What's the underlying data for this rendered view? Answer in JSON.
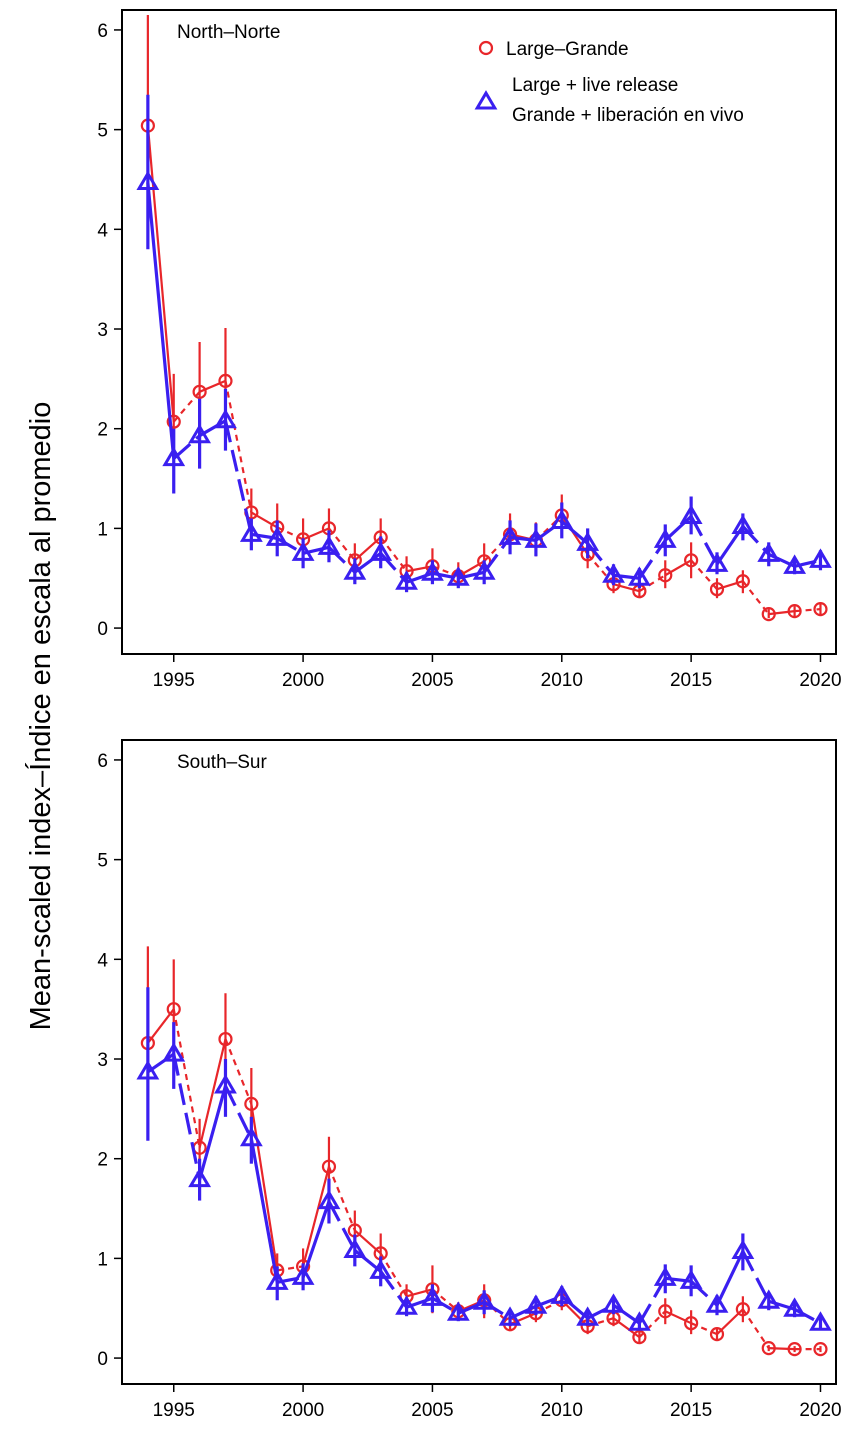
{
  "chart_data": {
    "type": "line",
    "ylabel": "Mean-scaled index–Índice en escala al promedio",
    "xticks": [
      1995,
      2000,
      2005,
      2010,
      2015,
      2020
    ],
    "yticks": [
      0,
      1,
      2,
      3,
      4,
      5,
      6
    ],
    "xlim": [
      1993.0,
      2020.6
    ],
    "ylim": [
      -0.26,
      6.2
    ],
    "legend_position": "top-right",
    "colors": {
      "large": "#e8262a",
      "live_release": "#3a1ff0"
    },
    "legend": [
      {
        "key": "large",
        "marker": "circle",
        "text": [
          "Large–Grande"
        ]
      },
      {
        "key": "live_release",
        "marker": "triangle",
        "text": [
          "Large + live release",
          "Grande + liberación en vivo"
        ]
      }
    ],
    "panels": [
      {
        "label": "North–Norte",
        "x": [
          1994,
          1995,
          1996,
          1997,
          1998,
          1999,
          2000,
          2001,
          2002,
          2003,
          2004,
          2005,
          2006,
          2007,
          2008,
          2009,
          2010,
          2011,
          2012,
          2013,
          2014,
          2015,
          2016,
          2017,
          2018,
          2019,
          2020
        ],
        "series": [
          {
            "key": "large",
            "name": "Large–Grande",
            "values": [
              5.04,
              2.07,
              2.37,
              2.48,
              1.16,
              1.01,
              0.89,
              1.0,
              0.68,
              0.91,
              0.57,
              0.62,
              0.52,
              0.67,
              0.94,
              0.88,
              1.13,
              0.74,
              0.44,
              0.37,
              0.53,
              0.68,
              0.39,
              0.47,
              0.14,
              0.17,
              0.19
            ],
            "lower": [
              4.2,
              1.65,
              1.95,
              2.0,
              0.95,
              0.8,
              0.72,
              0.8,
              0.52,
              0.72,
              0.45,
              0.45,
              0.42,
              0.5,
              0.75,
              0.72,
              0.93,
              0.6,
              0.35,
              0.3,
              0.4,
              0.5,
              0.3,
              0.35,
              0.1,
              0.12,
              0.14
            ],
            "upper": [
              6.15,
              2.55,
              2.87,
              3.01,
              1.4,
              1.25,
              1.1,
              1.2,
              0.85,
              1.1,
              0.72,
              0.8,
              0.66,
              0.85,
              1.15,
              1.06,
              1.34,
              0.9,
              0.55,
              0.46,
              0.68,
              0.86,
              0.5,
              0.58,
              0.19,
              0.22,
              0.25
            ]
          },
          {
            "key": "live_release",
            "name": "Large + live release Grande + liberación en vivo",
            "values": [
              4.47,
              1.7,
              1.93,
              2.08,
              0.94,
              0.9,
              0.75,
              0.81,
              0.56,
              0.75,
              0.46,
              0.55,
              0.5,
              0.56,
              0.91,
              0.88,
              1.07,
              0.85,
              0.53,
              0.5,
              0.88,
              1.12,
              0.64,
              1.02,
              0.74,
              0.62,
              0.68
            ],
            "lower": [
              3.8,
              1.35,
              1.6,
              1.78,
              0.78,
              0.72,
              0.6,
              0.66,
              0.44,
              0.6,
              0.36,
              0.44,
              0.4,
              0.44,
              0.74,
              0.72,
              0.9,
              0.7,
              0.43,
              0.4,
              0.72,
              0.94,
              0.54,
              0.88,
              0.62,
              0.54,
              0.58
            ],
            "upper": [
              5.35,
              2.0,
              2.3,
              2.4,
              1.1,
              1.08,
              0.9,
              0.98,
              0.7,
              0.92,
              0.56,
              0.68,
              0.6,
              0.68,
              1.08,
              1.05,
              1.26,
              1.0,
              0.64,
              0.6,
              1.04,
              1.32,
              0.76,
              1.15,
              0.86,
              0.7,
              0.78
            ]
          }
        ]
      },
      {
        "label": "South–Sur",
        "x": [
          1994,
          1995,
          1996,
          1997,
          1998,
          1999,
          2000,
          2001,
          2002,
          2003,
          2004,
          2005,
          2006,
          2007,
          2008,
          2009,
          2010,
          2011,
          2012,
          2013,
          2014,
          2015,
          2016,
          2017,
          2018,
          2019,
          2020
        ],
        "series": [
          {
            "key": "large",
            "name": "Large–Grande",
            "values": [
              3.16,
              3.5,
              2.11,
              3.2,
              2.55,
              0.88,
              0.92,
              1.92,
              1.28,
              1.05,
              0.62,
              0.69,
              0.47,
              0.58,
              0.34,
              0.45,
              0.58,
              0.32,
              0.4,
              0.21,
              0.47,
              0.35,
              0.24,
              0.49,
              0.1,
              0.09,
              0.09
            ],
            "lower": [
              2.35,
              2.95,
              1.8,
              2.75,
              2.1,
              0.7,
              0.75,
              1.6,
              1.08,
              0.85,
              0.5,
              0.45,
              0.38,
              0.4,
              0.27,
              0.36,
              0.48,
              0.24,
              0.32,
              0.16,
              0.34,
              0.24,
              0.18,
              0.36,
              0.07,
              0.06,
              0.06
            ],
            "upper": [
              4.13,
              4.0,
              2.4,
              3.66,
              2.91,
              1.05,
              1.1,
              2.22,
              1.48,
              1.25,
              0.74,
              0.93,
              0.56,
              0.74,
              0.42,
              0.55,
              0.7,
              0.4,
              0.48,
              0.27,
              0.6,
              0.48,
              0.3,
              0.62,
              0.13,
              0.12,
              0.12
            ]
          },
          {
            "key": "live_release",
            "name": "Large + live release Grande + liberación en vivo",
            "values": [
              2.87,
              3.05,
              1.79,
              2.73,
              2.2,
              0.76,
              0.81,
              1.57,
              1.08,
              0.87,
              0.51,
              0.6,
              0.45,
              0.56,
              0.4,
              0.52,
              0.62,
              0.4,
              0.53,
              0.35,
              0.8,
              0.77,
              0.53,
              1.07,
              0.57,
              0.49,
              0.35
            ],
            "lower": [
              2.18,
              2.7,
              1.58,
              2.42,
              1.95,
              0.58,
              0.68,
              1.35,
              0.92,
              0.72,
              0.42,
              0.46,
              0.37,
              0.44,
              0.32,
              0.43,
              0.52,
              0.33,
              0.44,
              0.28,
              0.65,
              0.62,
              0.43,
              0.88,
              0.48,
              0.41,
              0.29
            ],
            "upper": [
              3.72,
              3.37,
              2.0,
              3.0,
              2.42,
              0.92,
              0.95,
              1.8,
              1.24,
              1.02,
              0.61,
              0.74,
              0.53,
              0.68,
              0.48,
              0.62,
              0.72,
              0.48,
              0.62,
              0.42,
              0.94,
              0.93,
              0.63,
              1.25,
              0.66,
              0.57,
              0.42
            ]
          }
        ]
      }
    ]
  }
}
